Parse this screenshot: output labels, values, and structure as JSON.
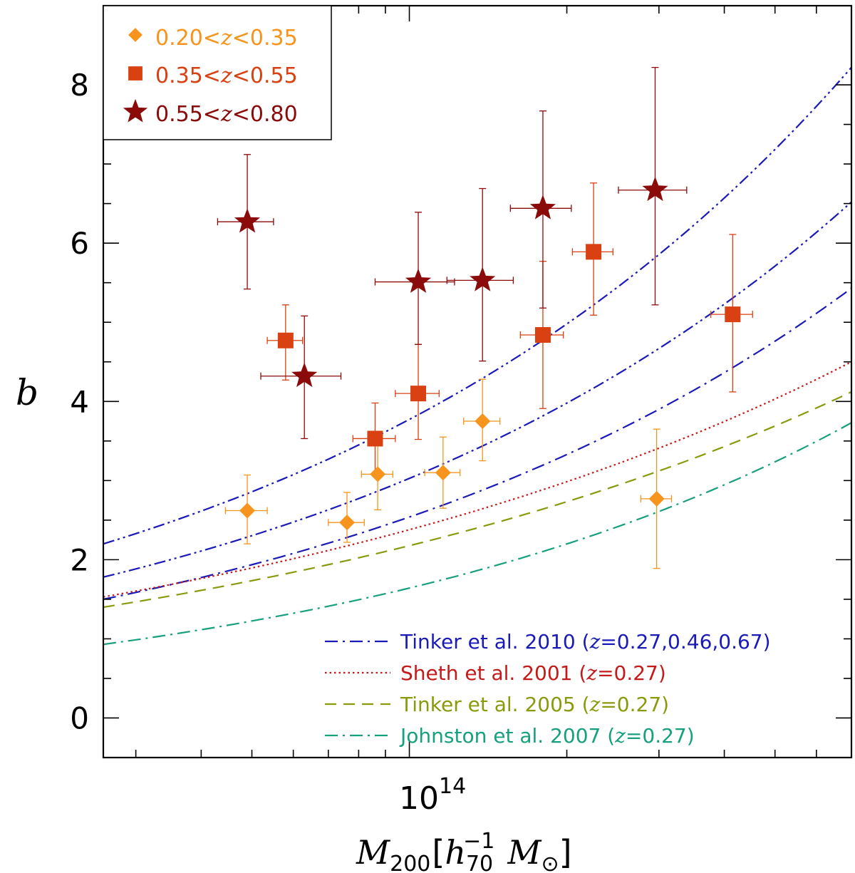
{
  "chart_data": {
    "type": "scatter",
    "title": "",
    "xlabel": "M200[h70^-1 M⊙]",
    "xlabel_parts": {
      "var": "M",
      "var_sub": "200",
      "bracket_open": "[",
      "h": "h",
      "h_sub": "70",
      "h_sup": "−1",
      "m": "M",
      "m_sub": "⊙",
      "bracket_close": "]"
    },
    "ylabel": "b",
    "xscale": "log",
    "xlim": [
      26000000000000,
      700000000000000
    ],
    "ylim": [
      -0.5,
      9.0
    ],
    "x_ticklabels": [
      {
        "mantissa": "10",
        "exponent": "14"
      }
    ],
    "y_ticks": [
      0,
      2,
      4,
      6,
      8
    ],
    "y_ticklabels": [
      "0",
      "2",
      "4",
      "6",
      "8"
    ],
    "legend_position": "top-left",
    "series": [
      {
        "name": "0.20<z<0.35",
        "name_parts": [
          "0.20<",
          "z",
          "<0.35"
        ],
        "marker": "diamond",
        "color": "#f7941d",
        "points": [
          {
            "x": 49000000000000,
            "y": 2.62,
            "xerr": [
              4500000000000,
              4500000000000
            ],
            "yerr": [
              0.42,
              0.45
            ]
          },
          {
            "x": 76000000000000,
            "y": 2.47,
            "xerr": [
              6000000000000,
              6000000000000
            ],
            "yerr": [
              0.25,
              0.38
            ]
          },
          {
            "x": 87000000000000,
            "y": 3.08,
            "xerr": [
              6000000000000,
              6000000000000
            ],
            "yerr": [
              0.45,
              0.45
            ]
          },
          {
            "x": 116000000000000,
            "y": 3.1,
            "xerr": [
              9000000000000,
              9000000000000
            ],
            "yerr": [
              0.45,
              0.45
            ]
          },
          {
            "x": 138000000000000,
            "y": 3.75,
            "xerr": [
              11000000000000,
              11000000000000
            ],
            "yerr": [
              0.5,
              0.53
            ]
          },
          {
            "x": 297000000000000,
            "y": 2.77,
            "xerr": [
              20000000000000,
              20000000000000
            ],
            "yerr": [
              0.88,
              0.88
            ]
          }
        ]
      },
      {
        "name": "0.35<z<0.55",
        "name_parts": [
          "0.35<",
          "z",
          "<0.55"
        ],
        "marker": "square",
        "color": "#d94012",
        "points": [
          {
            "x": 58000000000000,
            "y": 4.77,
            "xerr": [
              4500000000000,
              4500000000000
            ],
            "yerr": [
              0.5,
              0.45
            ]
          },
          {
            "x": 86000000000000,
            "y": 3.53,
            "xerr": [
              8000000000000,
              8000000000000
            ],
            "yerr": [
              0.45,
              0.45
            ]
          },
          {
            "x": 104000000000000,
            "y": 4.1,
            "xerr": [
              10000000000000,
              10000000000000
            ],
            "yerr": [
              0.58,
              0.62
            ]
          },
          {
            "x": 180000000000000,
            "y": 4.84,
            "xerr": [
              17000000000000,
              17000000000000
            ],
            "yerr": [
              0.93,
              0.93
            ]
          },
          {
            "x": 225000000000000,
            "y": 5.89,
            "xerr": [
              20000000000000,
              20000000000000
            ],
            "yerr": [
              0.8,
              0.87
            ]
          },
          {
            "x": 415000000000000,
            "y": 5.1,
            "xerr": [
              38000000000000,
              38000000000000
            ],
            "yerr": [
              0.98,
              1.01
            ]
          }
        ]
      },
      {
        "name": "0.55<z<0.80",
        "name_parts": [
          "0.55<",
          "z",
          "<0.80"
        ],
        "marker": "star",
        "color": "#8b0a0a",
        "points": [
          {
            "x": 49000000000000,
            "y": 6.27,
            "xerr": [
              6000000000000,
              6000000000000
            ],
            "yerr": [
              0.85,
              0.85
            ]
          },
          {
            "x": 63000000000000,
            "y": 4.32,
            "xerr": [
              11000000000000,
              11000000000000
            ],
            "yerr": [
              0.79,
              0.76
            ]
          },
          {
            "x": 104000000000000,
            "y": 5.51,
            "xerr": [
              18000000000000,
              18000000000000
            ],
            "yerr": [
              0.79,
              0.88
            ]
          },
          {
            "x": 138000000000000,
            "y": 5.53,
            "xerr": [
              20000000000000,
              20000000000000
            ],
            "yerr": [
              1.02,
              1.16
            ]
          },
          {
            "x": 180000000000000,
            "y": 6.44,
            "xerr": [
              24000000000000,
              24000000000000
            ],
            "yerr": [
              1.26,
              1.23
            ]
          },
          {
            "x": 295000000000000,
            "y": 6.67,
            "xerr": [
              44000000000000,
              44000000000000
            ],
            "yerr": [
              1.45,
              1.55
            ]
          }
        ]
      }
    ],
    "model_curves": [
      {
        "name": "Tinker et al. 2010",
        "label_parts": [
          "Tinker et al. 2010 (",
          "z",
          "=0.27,0.46,0.67)"
        ],
        "style": "dash-dot",
        "color": "#1a1ab8",
        "x": [
          26000000000000,
          700000000000000
        ],
        "y": [
          1.5,
          5.43
        ]
      },
      {
        "name": "Tinker et al. 2010 z=0.46",
        "style": "dash-dot-dot",
        "color": "#1a1ab8",
        "x": [
          26000000000000,
          700000000000000
        ],
        "y": [
          1.78,
          6.52
        ]
      },
      {
        "name": "Tinker et al. 2010 z=0.67",
        "style": "dash-dot-dot",
        "color": "#1a1ab8",
        "x": [
          26000000000000,
          700000000000000
        ],
        "y": [
          2.2,
          8.22
        ]
      },
      {
        "name": "Sheth et al. 2001",
        "label_parts": [
          "Sheth et al. 2001 (",
          "z",
          "=0.27)"
        ],
        "style": "dotted",
        "color": "#c41a1a",
        "x": [
          26000000000000,
          700000000000000
        ],
        "y": [
          1.53,
          4.5
        ]
      },
      {
        "name": "Tinker et al. 2005",
        "label_parts": [
          "Tinker et al. 2005 (",
          "z",
          "=0.27)"
        ],
        "style": "dashed",
        "color": "#8a9a0c",
        "x": [
          26000000000000,
          700000000000000
        ],
        "y": [
          1.4,
          4.12
        ]
      },
      {
        "name": "Johnston et al. 2007",
        "label_parts": [
          "Johnston et al. 2007 (",
          "z",
          "=0.27)"
        ],
        "style": "dash-dot",
        "color": "#17a07e",
        "x": [
          26000000000000,
          700000000000000
        ],
        "y": [
          0.93,
          3.73
        ]
      }
    ]
  }
}
